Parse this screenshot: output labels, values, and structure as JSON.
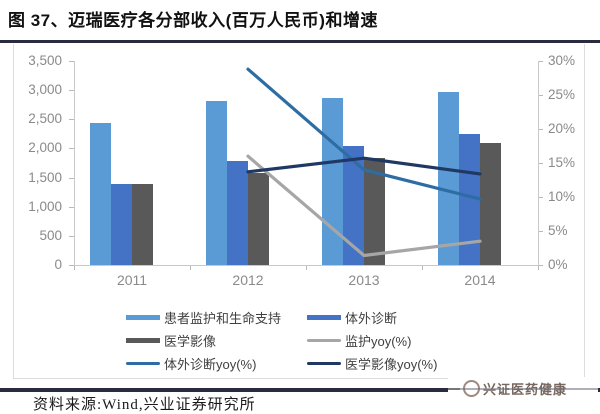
{
  "title": "图 37、迈瑞医疗各分部收入(百万人民币)和增速",
  "footer": {
    "source": "资料来源:Wind,兴业证券研究所"
  },
  "watermark": {
    "text": "兴证医药健康",
    "color": "#8a6a5e"
  },
  "colors": {
    "title_rule": "#2b2b40",
    "frame_border": "#dcdcdc",
    "axis_text": "#8a8a8a",
    "axis_line": "#c9c9c9"
  },
  "chart_data": {
    "type": "bar",
    "subtype": "combo-bar-line-dual-axis",
    "title": "迈瑞医疗各分部收入(百万人民币)和增速",
    "categories": [
      "2011",
      "2012",
      "2013",
      "2014"
    ],
    "bar_series": [
      {
        "name": "患者监护和生命支持",
        "key": "patient-monitoring-life-support",
        "color": "#5B9BD5",
        "axis": "left",
        "values": [
          2430,
          2820,
          2860,
          2960
        ]
      },
      {
        "name": "体外诊断",
        "key": "ivd",
        "color": "#4472C4",
        "axis": "left",
        "values": [
          1390,
          1790,
          2050,
          2240
        ]
      },
      {
        "name": "医学影像",
        "key": "medical-imaging",
        "color": "#595959",
        "axis": "left",
        "values": [
          1390,
          1580,
          1830,
          2090
        ]
      }
    ],
    "line_series": [
      {
        "name": "监护yoy(%)",
        "key": "monitoring-yoy",
        "color": "#A6A6A6",
        "axis": "right",
        "values": [
          null,
          16.0,
          1.4,
          3.5
        ]
      },
      {
        "name": "体外诊断yoy(%)",
        "key": "ivd-yoy",
        "color": "#2E6DA4",
        "axis": "right",
        "values": [
          null,
          28.8,
          14.0,
          9.7
        ]
      },
      {
        "name": "医学影像yoy(%)",
        "key": "imaging-yoy",
        "color": "#1F3864",
        "axis": "right",
        "values": [
          null,
          13.7,
          15.7,
          13.4
        ]
      }
    ],
    "left_axis": {
      "min": 0,
      "max": 3500,
      "step": 500,
      "tick_labels": [
        "3,500",
        "3,000",
        "2,500",
        "2,000",
        "1,500",
        "1,000",
        "500",
        "0"
      ]
    },
    "right_axis": {
      "min": 0,
      "max": 30,
      "step": 5,
      "unit": "%",
      "tick_labels": [
        "30%",
        "25%",
        "20%",
        "15%",
        "10%",
        "5%",
        "0%"
      ]
    },
    "grid": "off",
    "legend": {
      "position": "bottom",
      "columns": 2,
      "order": [
        "患者监护和生命支持",
        "体外诊断",
        "医学影像",
        "监护yoy(%)",
        "体外诊断yoy(%)",
        "医学影像yoy(%)"
      ]
    }
  }
}
